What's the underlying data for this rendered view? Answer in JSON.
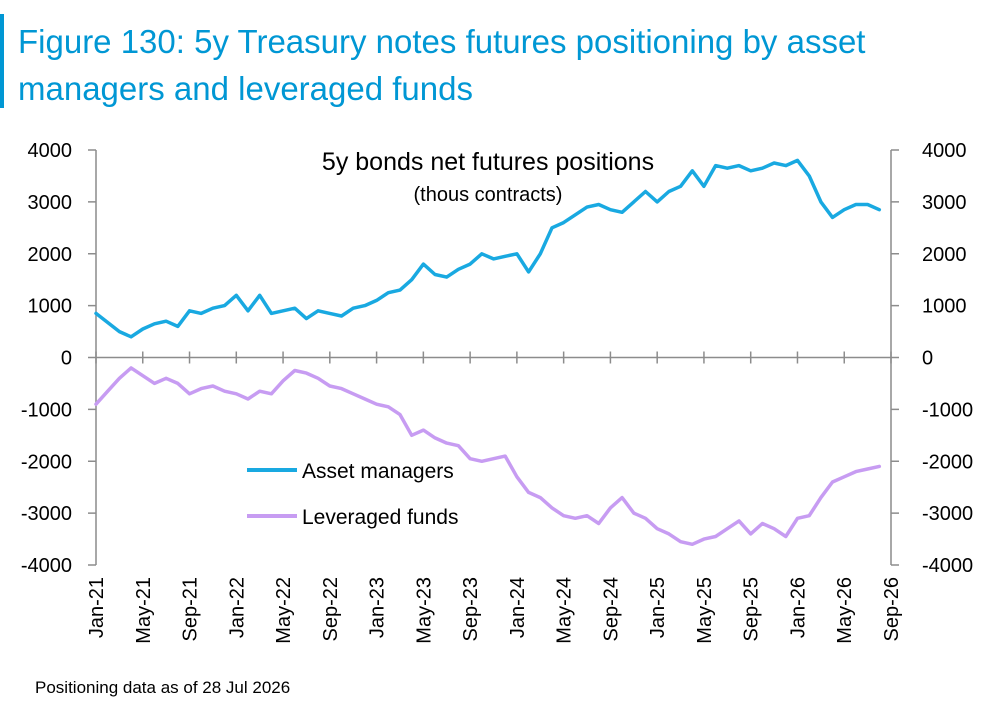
{
  "figure_title": "Figure 130: 5y Treasury notes futures positioning by asset managers and leveraged funds",
  "footnote": "Positioning data as of 28 Jul 2026",
  "colors": {
    "title": "#0097d4",
    "asset_managers": "#19a9e1",
    "leveraged_funds": "#c79cf2",
    "axis": "#8c8c8c"
  },
  "chart_data": {
    "type": "line",
    "title": "5y bonds net futures positions",
    "subtitle": "(thous contracts)",
    "xlabel": "",
    "ylabel": "",
    "x_ticks": [
      "Jan-21",
      "May-21",
      "Sep-21",
      "Jan-22",
      "May-22",
      "Sep-22",
      "Jan-23",
      "May-23",
      "Sep-23",
      "Jan-24",
      "May-24",
      "Sep-24",
      "Jan-25",
      "May-25",
      "Sep-25",
      "Jan-26",
      "May-26",
      "Sep-26"
    ],
    "y_ticks": [
      4000,
      3000,
      2000,
      1000,
      0,
      -1000,
      -2000,
      -3000,
      -4000
    ],
    "y_tick_labels": [
      "4000",
      "3000",
      "2000",
      "1000",
      "0",
      "-1000",
      "-2000",
      "-3000",
      "-4000"
    ],
    "ylim": [
      -4000,
      4000
    ],
    "secondary_axis_mirrors_primary": true,
    "grid": false,
    "legend_position": "center-left",
    "series": [
      {
        "name": "Asset managers",
        "x": [
          "2021-01",
          "2021-03",
          "2021-04",
          "2021-05",
          "2021-06",
          "2021-07",
          "2021-08",
          "2021-09",
          "2021-10",
          "2021-11",
          "2021-12",
          "2022-01",
          "2022-02",
          "2022-03",
          "2022-04",
          "2022-05",
          "2022-06",
          "2022-07",
          "2022-08",
          "2022-09",
          "2022-10",
          "2022-11",
          "2022-12",
          "2023-01",
          "2023-02",
          "2023-03",
          "2023-04",
          "2023-05",
          "2023-06",
          "2023-07",
          "2023-08",
          "2023-09",
          "2023-10",
          "2023-11",
          "2023-12",
          "2024-01",
          "2024-02",
          "2024-03",
          "2024-04",
          "2024-05",
          "2024-06",
          "2024-07",
          "2024-08",
          "2024-09",
          "2024-10",
          "2024-11",
          "2024-12",
          "2025-01",
          "2025-02",
          "2025-03",
          "2025-04",
          "2025-05",
          "2025-06",
          "2025-07",
          "2025-08",
          "2025-09",
          "2025-10",
          "2025-11",
          "2025-12",
          "2026-01",
          "2026-02",
          "2026-03",
          "2026-04",
          "2026-05",
          "2026-06",
          "2026-07",
          "2026-08"
        ],
        "values": [
          850,
          500,
          400,
          550,
          650,
          700,
          600,
          900,
          850,
          950,
          1000,
          1200,
          900,
          1200,
          850,
          900,
          950,
          750,
          900,
          850,
          800,
          950,
          1000,
          1100,
          1250,
          1300,
          1500,
          1800,
          1600,
          1550,
          1700,
          1800,
          2000,
          1900,
          1950,
          2000,
          1650,
          2000,
          2500,
          2600,
          2750,
          2900,
          2950,
          2850,
          2800,
          3000,
          3200,
          3000,
          3200,
          3300,
          3600,
          3300,
          3700,
          3650,
          3700,
          3600,
          3650,
          3750,
          3700,
          3800,
          3500,
          3000,
          2700,
          2850,
          2950,
          2950,
          2850
        ]
      },
      {
        "name": "Leveraged funds",
        "x": [
          "2021-01",
          "2021-02",
          "2021-03",
          "2021-04",
          "2021-05",
          "2021-06",
          "2021-07",
          "2021-08",
          "2021-09",
          "2021-10",
          "2021-11",
          "2021-12",
          "2022-01",
          "2022-02",
          "2022-03",
          "2022-04",
          "2022-05",
          "2022-06",
          "2022-07",
          "2022-08",
          "2022-09",
          "2022-10",
          "2022-11",
          "2022-12",
          "2023-01",
          "2023-02",
          "2023-03",
          "2023-04",
          "2023-05",
          "2023-06",
          "2023-07",
          "2023-08",
          "2023-09",
          "2023-10",
          "2023-11",
          "2023-12",
          "2024-01",
          "2024-02",
          "2024-03",
          "2024-04",
          "2024-05",
          "2024-06",
          "2024-07",
          "2024-08",
          "2024-09",
          "2024-10",
          "2024-11",
          "2024-12",
          "2025-01",
          "2025-02",
          "2025-03",
          "2025-04",
          "2025-05",
          "2025-06",
          "2025-07",
          "2025-08",
          "2025-09",
          "2025-10",
          "2025-11",
          "2025-12",
          "2026-01",
          "2026-02",
          "2026-03",
          "2026-04",
          "2026-05",
          "2026-06",
          "2026-07",
          "2026-08"
        ],
        "values": [
          -900,
          -650,
          -400,
          -200,
          -350,
          -500,
          -400,
          -500,
          -700,
          -600,
          -550,
          -650,
          -700,
          -800,
          -650,
          -700,
          -450,
          -250,
          -300,
          -400,
          -550,
          -600,
          -700,
          -800,
          -900,
          -950,
          -1100,
          -1500,
          -1400,
          -1550,
          -1650,
          -1700,
          -1950,
          -2000,
          -1950,
          -1900,
          -2300,
          -2600,
          -2700,
          -2900,
          -3050,
          -3100,
          -3050,
          -3200,
          -2900,
          -2700,
          -3000,
          -3100,
          -3300,
          -3400,
          -3550,
          -3600,
          -3500,
          -3450,
          -3300,
          -3150,
          -3400,
          -3200,
          -3300,
          -3450,
          -3100,
          -3050,
          -2700,
          -2400,
          -2300,
          -2200,
          -2150,
          -2100
        ]
      }
    ]
  }
}
